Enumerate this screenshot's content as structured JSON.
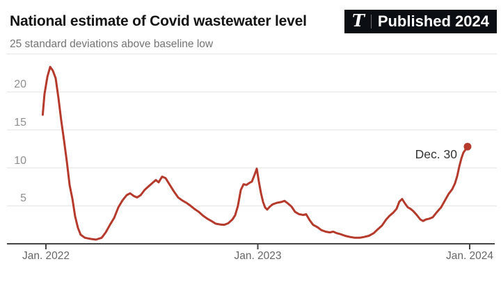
{
  "header": {
    "title": "National estimate of Covid wastewater level",
    "badge": {
      "logo_glyph": "T",
      "label": "Published 2024",
      "bg_color": "#0b0e13",
      "text_color": "#ffffff"
    }
  },
  "chart_data": {
    "type": "line",
    "title": "National estimate of Covid wastewater level",
    "subtitle": "25 standard deviations above baseline low",
    "xlabel": "",
    "ylabel": "standard deviations above baseline low",
    "ylim": [
      0,
      25
    ],
    "grid": true,
    "y_ticks": [
      5,
      10,
      15,
      20
    ],
    "y_grid": [
      5,
      10,
      15,
      20,
      25
    ],
    "x_ticks": [
      {
        "t": 0,
        "label": "Jan. 2022"
      },
      {
        "t": 1,
        "label": "Jan. 2023"
      },
      {
        "t": 2,
        "label": "Jan. 2024"
      }
    ],
    "x_unit": "years since Jan. 1, 2022",
    "annotation": {
      "label": "Dec. 30",
      "t": 1.99,
      "v": 12.8
    },
    "line_color": "#b53a2c",
    "grid_color": "#e3e3e3",
    "axis_color": "#454545",
    "series": [
      {
        "name": "National Covid wastewater estimate",
        "points": [
          [
            -0.015,
            17.0
          ],
          [
            -0.007,
            19.7
          ],
          [
            0.007,
            22.0
          ],
          [
            0.02,
            23.3
          ],
          [
            0.033,
            22.8
          ],
          [
            0.046,
            21.8
          ],
          [
            0.059,
            19.2
          ],
          [
            0.072,
            16.3
          ],
          [
            0.085,
            13.7
          ],
          [
            0.099,
            10.8
          ],
          [
            0.112,
            7.7
          ],
          [
            0.125,
            5.9
          ],
          [
            0.138,
            3.6
          ],
          [
            0.151,
            2.1
          ],
          [
            0.164,
            1.2
          ],
          [
            0.184,
            0.8
          ],
          [
            0.21,
            0.65
          ],
          [
            0.236,
            0.55
          ],
          [
            0.263,
            0.8
          ],
          [
            0.282,
            1.5
          ],
          [
            0.302,
            2.5
          ],
          [
            0.322,
            3.4
          ],
          [
            0.342,
            4.8
          ],
          [
            0.361,
            5.7
          ],
          [
            0.381,
            6.4
          ],
          [
            0.397,
            6.65
          ],
          [
            0.414,
            6.3
          ],
          [
            0.43,
            6.1
          ],
          [
            0.447,
            6.4
          ],
          [
            0.466,
            7.1
          ],
          [
            0.486,
            7.6
          ],
          [
            0.506,
            8.1
          ],
          [
            0.519,
            8.4
          ],
          [
            0.532,
            8.1
          ],
          [
            0.548,
            8.85
          ],
          [
            0.565,
            8.65
          ],
          [
            0.585,
            7.75
          ],
          [
            0.604,
            6.9
          ],
          [
            0.624,
            6.1
          ],
          [
            0.644,
            5.7
          ],
          [
            0.663,
            5.4
          ],
          [
            0.683,
            5.0
          ],
          [
            0.703,
            4.55
          ],
          [
            0.722,
            4.2
          ],
          [
            0.742,
            3.7
          ],
          [
            0.762,
            3.3
          ],
          [
            0.781,
            3.0
          ],
          [
            0.801,
            2.65
          ],
          [
            0.821,
            2.55
          ],
          [
            0.841,
            2.5
          ],
          [
            0.86,
            2.7
          ],
          [
            0.88,
            3.2
          ],
          [
            0.893,
            3.75
          ],
          [
            0.906,
            5.0
          ],
          [
            0.92,
            7.1
          ],
          [
            0.933,
            7.85
          ],
          [
            0.946,
            7.75
          ],
          [
            0.959,
            8.0
          ],
          [
            0.972,
            8.2
          ],
          [
            0.985,
            9.1
          ],
          [
            0.995,
            9.9
          ],
          [
            1.005,
            8.2
          ],
          [
            1.015,
            6.65
          ],
          [
            1.025,
            5.5
          ],
          [
            1.034,
            4.8
          ],
          [
            1.044,
            4.5
          ],
          [
            1.057,
            4.9
          ],
          [
            1.07,
            5.2
          ],
          [
            1.09,
            5.4
          ],
          [
            1.11,
            5.5
          ],
          [
            1.126,
            5.65
          ],
          [
            1.143,
            5.3
          ],
          [
            1.159,
            4.9
          ],
          [
            1.176,
            4.2
          ],
          [
            1.195,
            3.9
          ],
          [
            1.215,
            3.8
          ],
          [
            1.228,
            3.9
          ],
          [
            1.245,
            3.1
          ],
          [
            1.261,
            2.5
          ],
          [
            1.281,
            2.2
          ],
          [
            1.3,
            1.8
          ],
          [
            1.32,
            1.6
          ],
          [
            1.34,
            1.5
          ],
          [
            1.356,
            1.6
          ],
          [
            1.373,
            1.4
          ],
          [
            1.392,
            1.25
          ],
          [
            1.412,
            1.05
          ],
          [
            1.435,
            0.9
          ],
          [
            1.458,
            0.8
          ],
          [
            1.481,
            0.8
          ],
          [
            1.501,
            0.9
          ],
          [
            1.524,
            1.05
          ],
          [
            1.547,
            1.4
          ],
          [
            1.566,
            1.9
          ],
          [
            1.586,
            2.4
          ],
          [
            1.606,
            3.2
          ],
          [
            1.622,
            3.7
          ],
          [
            1.639,
            4.1
          ],
          [
            1.655,
            4.6
          ],
          [
            1.668,
            5.55
          ],
          [
            1.681,
            5.9
          ],
          [
            1.695,
            5.3
          ],
          [
            1.708,
            4.8
          ],
          [
            1.721,
            4.6
          ],
          [
            1.734,
            4.3
          ],
          [
            1.75,
            3.8
          ],
          [
            1.767,
            3.2
          ],
          [
            1.78,
            3.0
          ],
          [
            1.793,
            3.2
          ],
          [
            1.809,
            3.3
          ],
          [
            1.826,
            3.5
          ],
          [
            1.846,
            4.2
          ],
          [
            1.865,
            4.8
          ],
          [
            1.885,
            5.8
          ],
          [
            1.901,
            6.6
          ],
          [
            1.918,
            7.2
          ],
          [
            1.931,
            8.0
          ],
          [
            1.941,
            8.9
          ],
          [
            1.951,
            10.2
          ],
          [
            1.961,
            11.25
          ],
          [
            1.97,
            12.0
          ],
          [
            1.98,
            12.4
          ],
          [
            1.99,
            12.8
          ]
        ]
      }
    ]
  }
}
